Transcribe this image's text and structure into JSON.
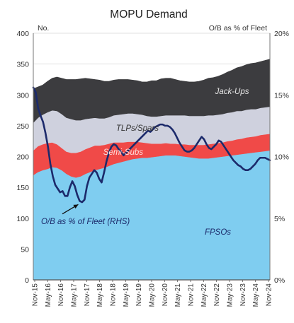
{
  "chart_data": {
    "type": "area",
    "title": "MOPU Demand",
    "left_axis_unit": "No.",
    "right_axis_unit": "O/B as % of Fleet",
    "y_left": {
      "min": 0,
      "max": 400,
      "ticks": [
        "0",
        "50",
        "100",
        "150",
        "200",
        "250",
        "300",
        "350",
        "400"
      ]
    },
    "y_right": {
      "min": 0,
      "max": 20,
      "ticks": [
        "0%",
        "5%",
        "10%",
        "15%",
        "20%"
      ]
    },
    "x_ticks": [
      "Nov-15",
      "May-16",
      "Nov-16",
      "May-17",
      "Nov-17",
      "May-18",
      "Nov-18",
      "May-19",
      "Nov-19",
      "May-20",
      "Nov-20",
      "May-21",
      "Nov-21",
      "May-22",
      "Nov-22",
      "May-23",
      "Nov-23",
      "May-24",
      "Nov-24"
    ],
    "grid": true,
    "stacked_series": [
      {
        "name": "FPSOs",
        "color": "#7fcdf0",
        "values": [
          170,
          175,
          178,
          180,
          183,
          182,
          178,
          172,
          168,
          166,
          168,
          172,
          175,
          178,
          180,
          182,
          185,
          188,
          190,
          192,
          194,
          196,
          197,
          198,
          198,
          199,
          200,
          201,
          202,
          202,
          202,
          201,
          200,
          199,
          198,
          197,
          197,
          197,
          198,
          199,
          200,
          201,
          202,
          203,
          204,
          205,
          206,
          207,
          208,
          209,
          210
        ]
      },
      {
        "name": "Semi-Subs",
        "color": "#f04a48",
        "values": [
          40,
          42,
          42,
          42,
          40,
          38,
          36,
          36,
          38,
          40,
          40,
          40,
          40,
          40,
          38,
          37,
          36,
          35,
          33,
          31,
          30,
          28,
          27,
          25,
          24,
          22,
          21,
          20,
          20,
          19,
          19,
          19,
          20,
          20,
          21,
          22,
          22,
          23,
          23,
          23,
          23,
          24,
          24,
          25,
          25,
          26,
          26,
          26,
          27,
          27,
          27
        ]
      },
      {
        "name": "TLPs/Spars",
        "color": "#cfd1de",
        "values": [
          45,
          46,
          48,
          50,
          52,
          54,
          55,
          55,
          55,
          53,
          51,
          49,
          47,
          45,
          44,
          43,
          43,
          44,
          45,
          46,
          46,
          46,
          45,
          45,
          44,
          44,
          44,
          45,
          45,
          46,
          46,
          47,
          47,
          47,
          47,
          47,
          47,
          47,
          46,
          46,
          46,
          46,
          46,
          46,
          45,
          45,
          45,
          44,
          44,
          44,
          44
        ]
      },
      {
        "name": "Jack-Ups",
        "color": "#3c3c3f",
        "values": [
          55,
          50,
          48,
          50,
          52,
          55,
          58,
          62,
          64,
          66,
          67,
          66,
          64,
          62,
          62,
          60,
          58,
          57,
          57,
          56,
          55,
          54,
          54,
          53,
          55,
          58,
          58,
          60,
          60,
          60,
          58,
          56,
          55,
          55,
          55,
          56,
          58,
          60,
          61,
          62,
          64,
          66,
          68,
          70,
          72,
          73,
          74,
          75,
          75,
          76,
          77
        ]
      }
    ],
    "line_series": {
      "name": "O/B as % of Fleet (RHS)",
      "axis": "right",
      "color": "#1c2a6b",
      "values": [
        15.6,
        15.2,
        13.9,
        13.3,
        12.8,
        11.9,
        10.8,
        9.4,
        8.4,
        7.7,
        7.4,
        7.1,
        7.2,
        6.8,
        6.8,
        7.5,
        8.0,
        7.6,
        6.9,
        6.4,
        6.3,
        6.5,
        7.6,
        8.3,
        8.6,
        8.9,
        8.7,
        8.2,
        7.9,
        8.7,
        9.6,
        10.3,
        10.8,
        11.0,
        10.9,
        10.6,
        10.4,
        10.1,
        10.3,
        10.5,
        10.7,
        10.9,
        11.1,
        11.3,
        11.5,
        11.7,
        11.9,
        12.1,
        12.0,
        12.2,
        12.4,
        12.5,
        12.6,
        12.6,
        12.5,
        12.5,
        12.4,
        12.2,
        11.9,
        11.5,
        11.1,
        10.8,
        10.5,
        10.4,
        10.4,
        10.5,
        10.7,
        11.0,
        11.3,
        11.6,
        11.4,
        11.0,
        10.7,
        10.6,
        10.8,
        11.0,
        11.3,
        11.2,
        10.9,
        10.6,
        10.3,
        10.0,
        9.7,
        9.5,
        9.3,
        9.2,
        9.0,
        8.9,
        8.9,
        9.0,
        9.2,
        9.4,
        9.7,
        9.9,
        9.9,
        9.9,
        9.8,
        9.7
      ]
    },
    "annotations": [
      {
        "text": "Jack-Ups",
        "series": "Jack-Ups"
      },
      {
        "text": "TLPs/Spars",
        "series": "TLPs/Spars"
      },
      {
        "text": "Semi-Subs",
        "series": "Semi-Subs"
      },
      {
        "text": "FPSOs",
        "series": "FPSOs"
      },
      {
        "text": "O/B as % of Fleet (RHS)",
        "series": "line"
      }
    ]
  }
}
